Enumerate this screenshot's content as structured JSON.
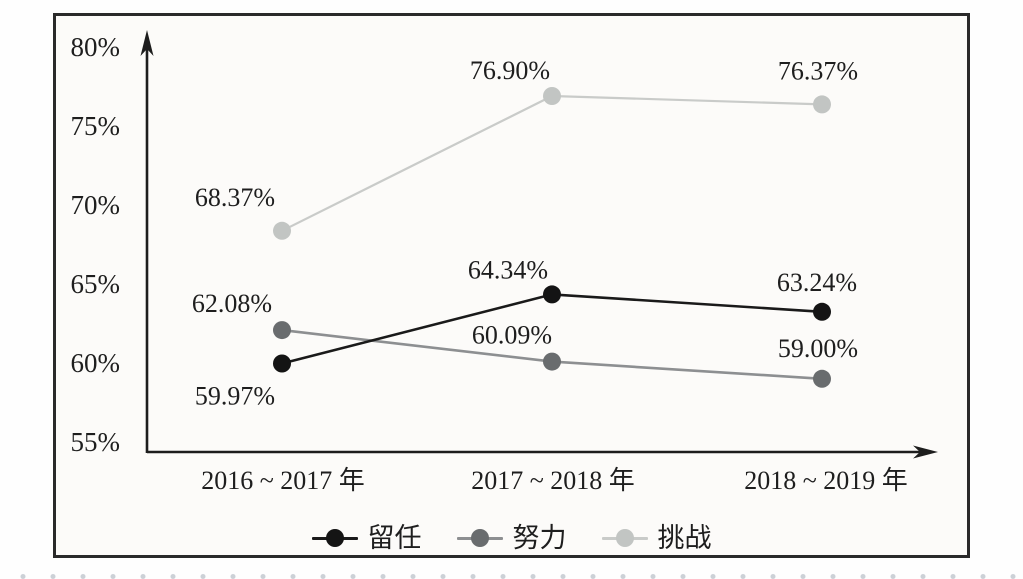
{
  "figure": {
    "background_color": "#fcfbf9",
    "border_color": "#2a2a2a"
  },
  "axes": {
    "y_ticks": [
      "80%",
      "75%",
      "70%",
      "65%",
      "60%",
      "55%"
    ],
    "x_ticks": [
      "2016 ~ 2017 年",
      "2017 ~ 2018 年",
      "2018 ~ 2019 年"
    ]
  },
  "legend": {
    "items": [
      {
        "label": "留任",
        "line_color": "#1a1a1a",
        "dot_color": "#141414"
      },
      {
        "label": "努力",
        "line_color": "#8d8f91",
        "dot_color": "#696c6e"
      },
      {
        "label": "挑战",
        "line_color": "#c9cbc9",
        "dot_color": "#c2c5c3"
      }
    ]
  },
  "chart_data": {
    "type": "line",
    "categories": [
      "2016 ~ 2017 年",
      "2017 ~ 2018 年",
      "2018 ~ 2019 年"
    ],
    "series": [
      {
        "name": "留任",
        "values": [
          59.97,
          64.34,
          63.24
        ],
        "labels": [
          "59.97%",
          "64.34%",
          "63.24%"
        ],
        "line_color": "#1a1a1a",
        "dot_color": "#141414"
      },
      {
        "name": "努力",
        "values": [
          62.08,
          60.09,
          59.0
        ],
        "labels": [
          "62.08%",
          "60.09%",
          "59.00%"
        ],
        "line_color": "#8d8f91",
        "dot_color": "#696c6e"
      },
      {
        "name": "挑战",
        "values": [
          68.37,
          76.9,
          76.37
        ],
        "labels": [
          "68.37%",
          "76.90%",
          "76.37%"
        ],
        "line_color": "#c9cbc9",
        "dot_color": "#c2c5c3"
      }
    ],
    "ylim": [
      55,
      80
    ],
    "y_tick_step": 5,
    "grid": false,
    "legend_position": "bottom",
    "title": "",
    "xlabel": "",
    "ylabel": ""
  }
}
